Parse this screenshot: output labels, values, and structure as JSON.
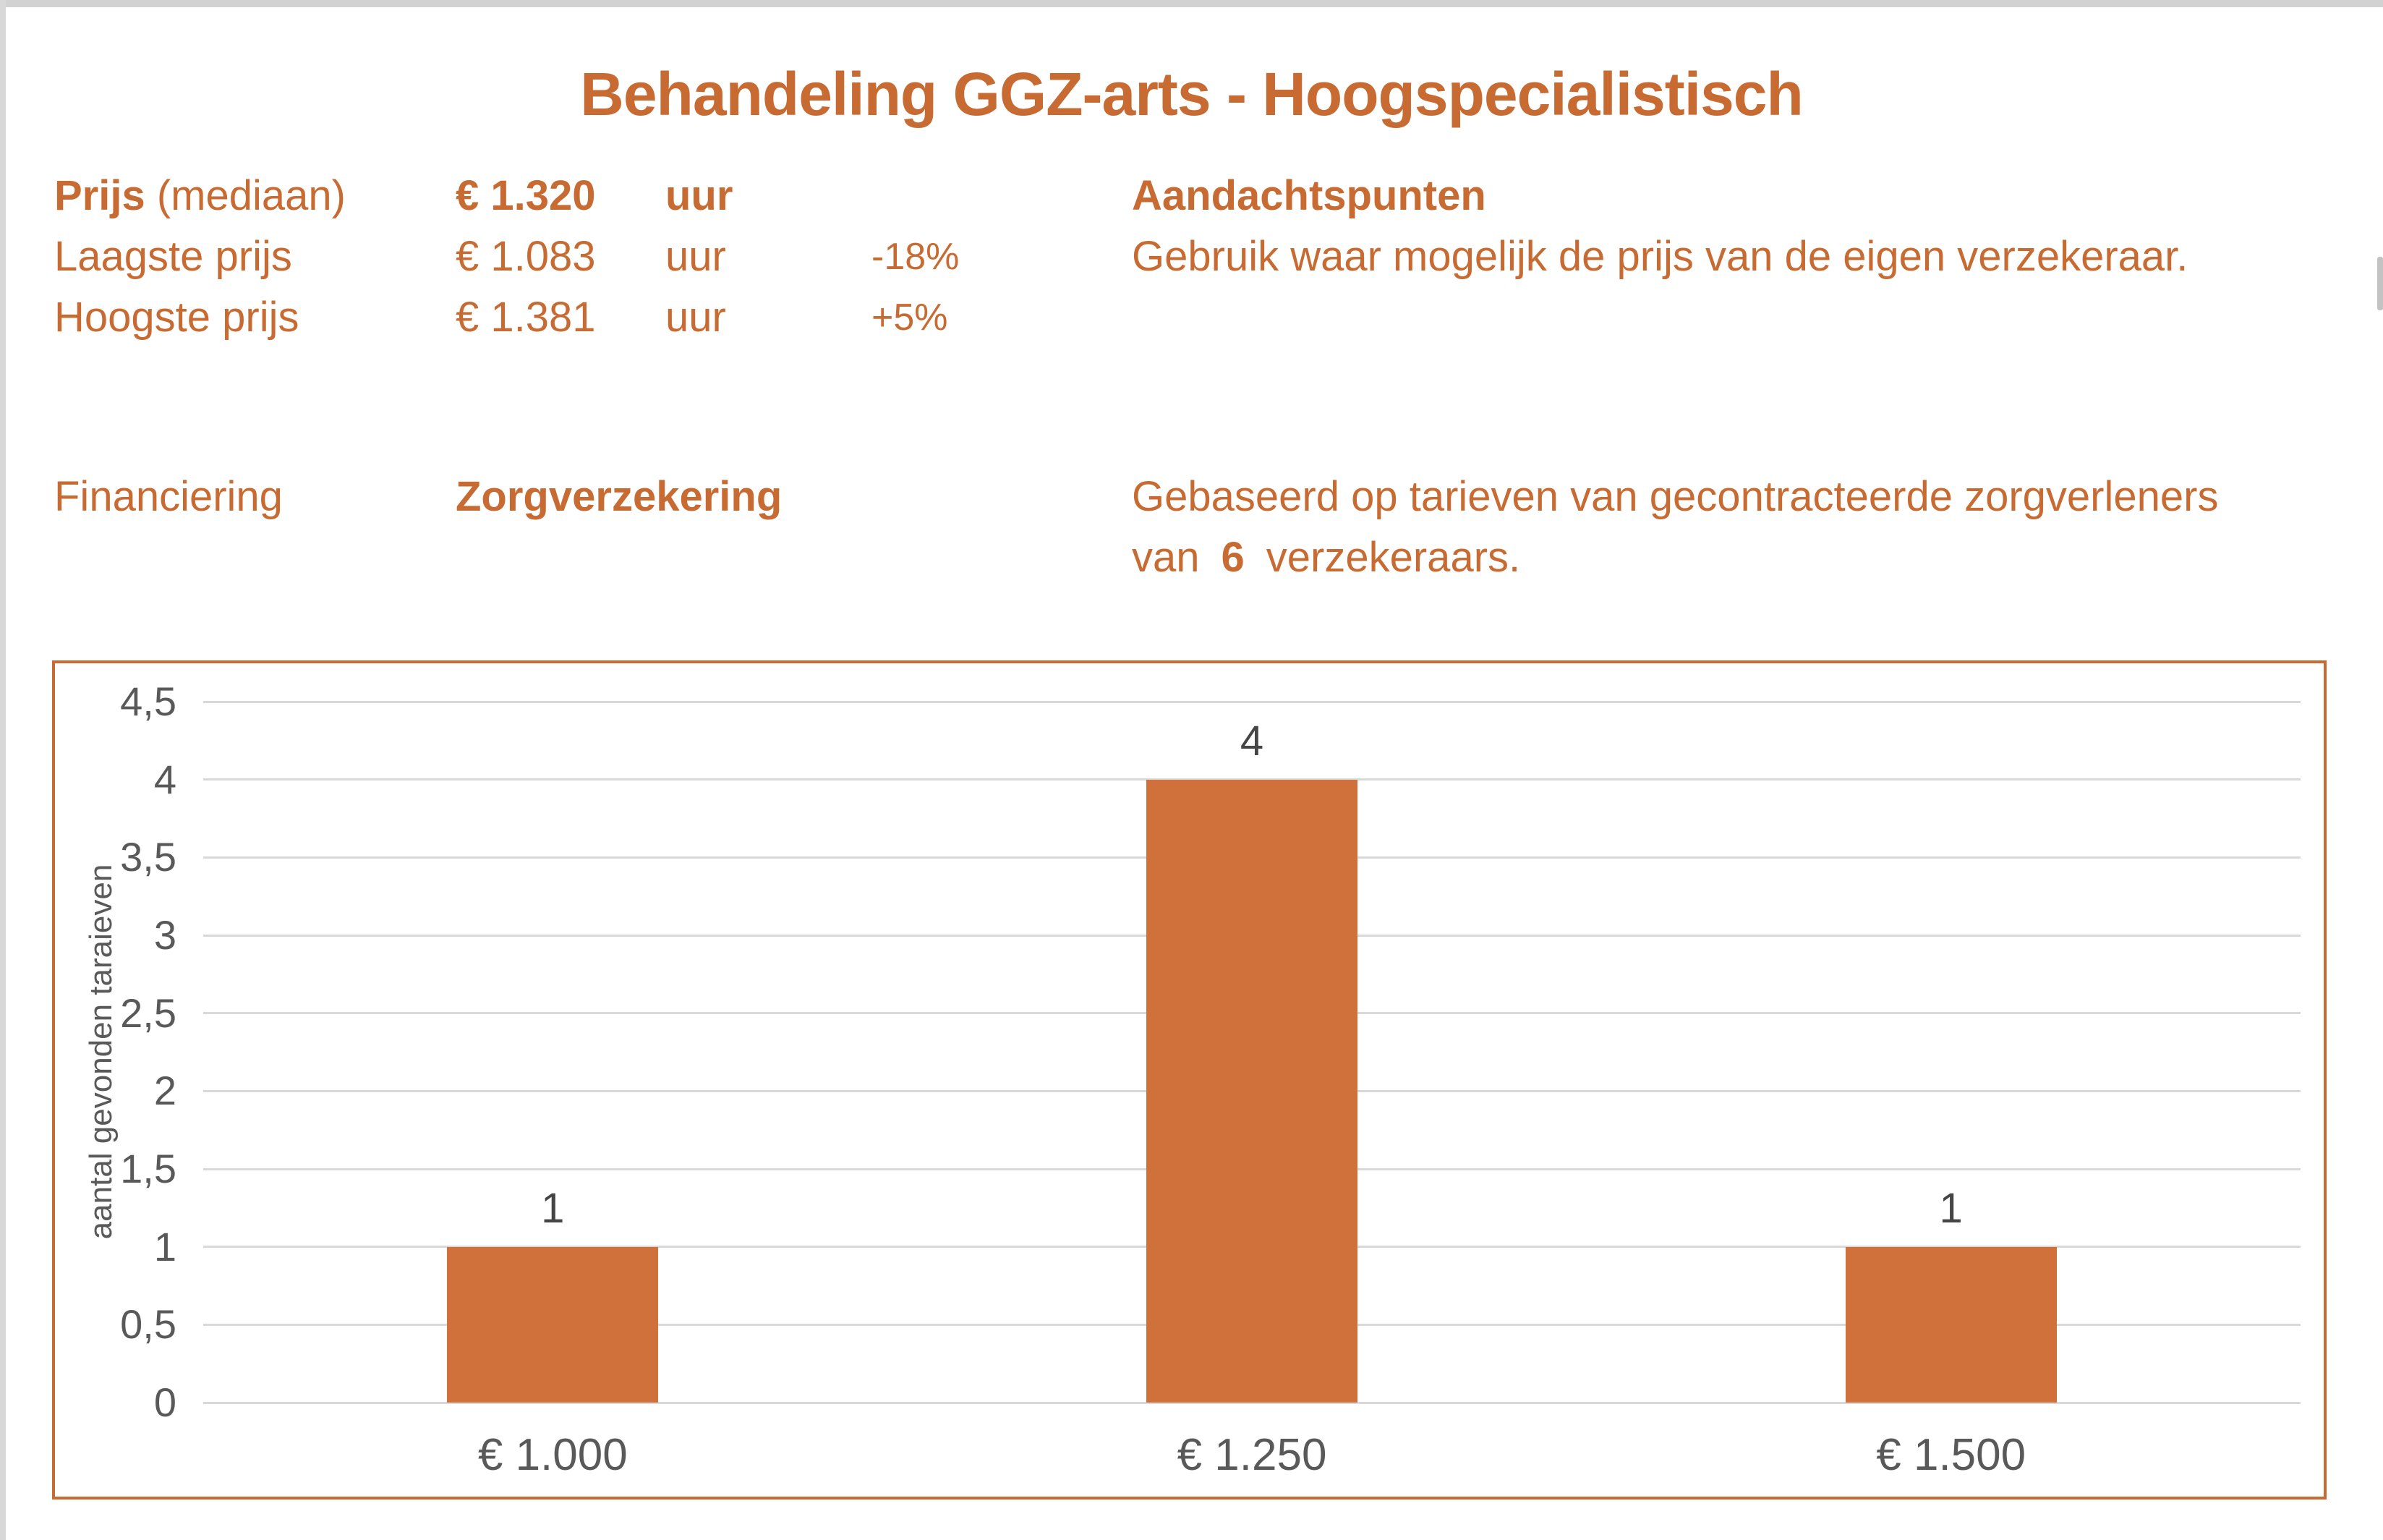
{
  "page": {
    "title": "Behandeling GGZ-arts - Hoogspecialistisch"
  },
  "colors": {
    "accent_orange": "#C76B33",
    "bar_orange": "#D0713C",
    "grid_gray": "#D9D9D9",
    "axis_text_gray": "#595959",
    "data_label_gray": "#454545"
  },
  "info": {
    "rows": [
      {
        "label_bold": "Prijs",
        "label_rest": " (mediaan)",
        "value": "€ 1.320",
        "unit": "uur",
        "diff": ""
      },
      {
        "label": "Laagste prijs",
        "value": "€ 1.083",
        "unit": "uur",
        "diff": "-18%"
      },
      {
        "label": "Hoogste prijs",
        "value": "€ 1.381",
        "unit": "uur",
        "diff": "+5%"
      }
    ],
    "financing_label": "Financiering",
    "financing_value": "Zorgverzekering"
  },
  "notes": {
    "heading": "Aandachtspunten",
    "line1": "Gebruik waar mogelijk de prijs van de eigen verzekeraar.",
    "line2_first": "Gebaseerd op tarieven van gecontracteerde zorgverleners",
    "line2_prefix": "van",
    "line2_count": "6",
    "line2_suffix": "verzekeraars."
  },
  "chart_data": {
    "type": "bar",
    "title": "",
    "categories": [
      "€ 1.000",
      "€ 1.250",
      "€ 1.500"
    ],
    "values": [
      1,
      4,
      1
    ],
    "data_labels": [
      "1",
      "4",
      "1"
    ],
    "xlabel": "",
    "ylabel": "aantal gevonden taraieven",
    "ylim": [
      0,
      4.5
    ],
    "ytick_step": 0.5,
    "ytick_labels": [
      "0",
      "0,5",
      "1",
      "1,5",
      "2",
      "2,5",
      "3",
      "3,5",
      "4",
      "4,5"
    ],
    "grid": true,
    "legend": false,
    "bar_color": "#D0713C",
    "border_color": "#C76B33"
  }
}
